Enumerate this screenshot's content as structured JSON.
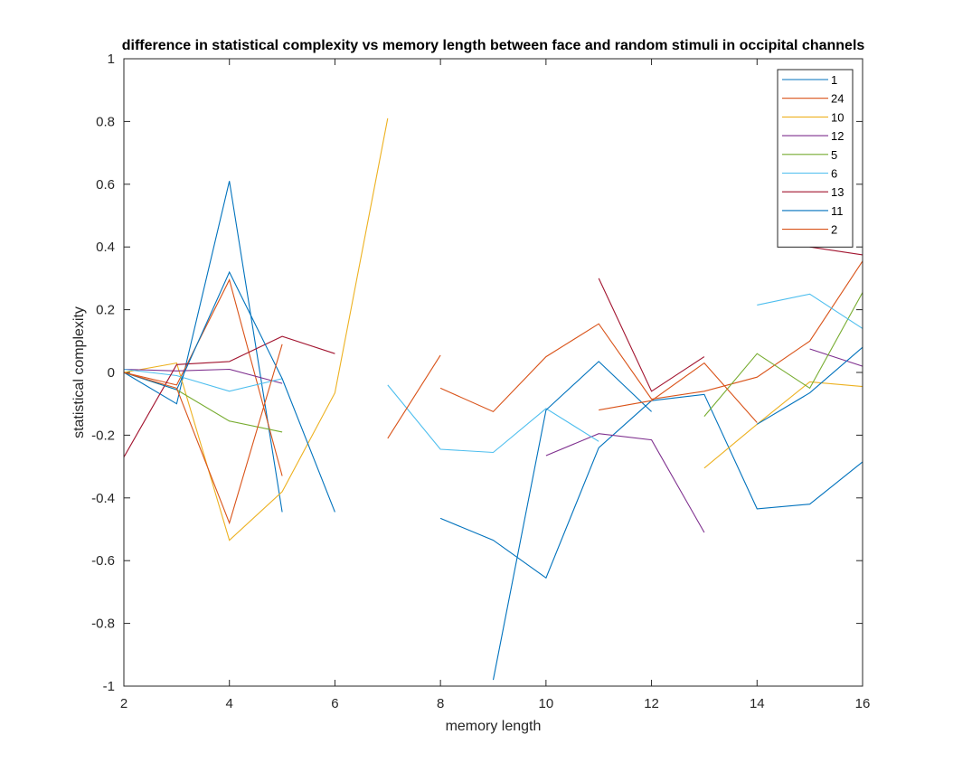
{
  "chart_data": {
    "type": "line",
    "title": "difference in statistical complexity vs memory length between face and random stimuli in occipital channels",
    "xlabel": "memory length",
    "ylabel": "statistical complexity",
    "xlim": [
      2,
      16
    ],
    "ylim": [
      -1,
      1
    ],
    "xticks": [
      2,
      4,
      6,
      8,
      10,
      12,
      14,
      16
    ],
    "yticks": [
      -1,
      -0.8,
      -0.6,
      -0.4,
      -0.2,
      0,
      0.2,
      0.4,
      0.6,
      0.8,
      1
    ],
    "box": true,
    "legend_position": "top-right",
    "x": [
      2,
      3,
      4,
      5,
      6,
      7,
      8,
      9,
      10,
      11,
      12,
      13,
      14,
      15,
      16
    ],
    "series": [
      {
        "name": "1",
        "color": "#0072BD",
        "values": [
          0.0,
          -0.1,
          0.61,
          -0.445,
          null,
          null,
          -0.465,
          -0.535,
          -0.655,
          -0.24,
          -0.09,
          -0.07,
          -0.435,
          -0.42,
          -0.285
        ]
      },
      {
        "name": "24",
        "color": "#D95319",
        "values": [
          0.0,
          -0.04,
          0.295,
          -0.33,
          null,
          null,
          -0.05,
          -0.125,
          0.05,
          0.155,
          -0.085,
          -0.06,
          -0.015,
          0.1,
          0.355
        ]
      },
      {
        "name": "10",
        "color": "#EDB120",
        "values": [
          0.0,
          0.03,
          -0.535,
          -0.38,
          -0.065,
          0.81,
          null,
          null,
          null,
          null,
          null,
          -0.305,
          -0.165,
          -0.03,
          -0.045
        ]
      },
      {
        "name": "12",
        "color": "#7E2F8E",
        "values": [
          0.01,
          0.005,
          0.01,
          -0.035,
          null,
          null,
          null,
          null,
          -0.265,
          -0.195,
          -0.215,
          -0.51,
          null,
          0.075,
          0.02
        ]
      },
      {
        "name": "5",
        "color": "#77AC30",
        "values": [
          0.0,
          -0.055,
          -0.155,
          -0.19,
          null,
          null,
          null,
          null,
          null,
          null,
          null,
          -0.14,
          0.06,
          -0.05,
          0.255
        ]
      },
      {
        "name": "6",
        "color": "#4DBEEE",
        "values": [
          0.01,
          -0.01,
          -0.06,
          -0.02,
          null,
          -0.04,
          -0.245,
          -0.255,
          -0.115,
          -0.22,
          null,
          null,
          0.215,
          0.25,
          0.14
        ]
      },
      {
        "name": "13",
        "color": "#A2142F",
        "values": [
          -0.27,
          0.025,
          0.035,
          0.115,
          0.06,
          null,
          null,
          null,
          null,
          0.3,
          -0.06,
          0.05,
          null,
          0.4,
          0.375
        ]
      },
      {
        "name": "11",
        "color": "#0072BD",
        "values": [
          0.0,
          -0.055,
          0.32,
          -0.02,
          -0.445,
          null,
          null,
          -0.98,
          -0.12,
          0.035,
          -0.125,
          null,
          -0.165,
          -0.065,
          0.08
        ]
      },
      {
        "name": "2",
        "color": "#D95319",
        "values": [
          0.0,
          -0.05,
          -0.48,
          0.09,
          null,
          -0.21,
          0.055,
          null,
          null,
          -0.12,
          -0.09,
          0.03,
          -0.16,
          null,
          null
        ]
      }
    ]
  }
}
